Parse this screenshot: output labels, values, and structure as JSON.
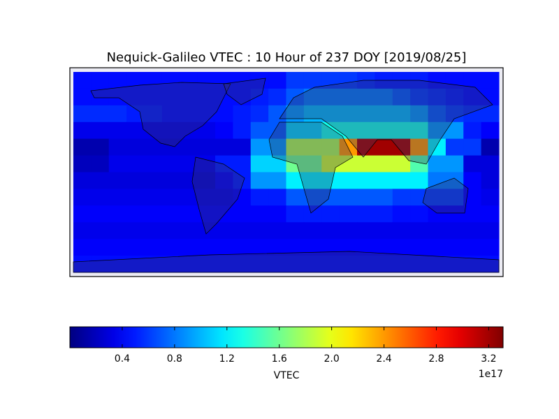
{
  "chart_data": {
    "type": "heatmap",
    "title": "Nequick-Galileo VTEC : 10 Hour of 237 DOY [2019/08/25]",
    "colormap": "jet",
    "z": [
      [
        0.45,
        0.45,
        0.45,
        0.45,
        0.45,
        0.45,
        0.45,
        0.45,
        0.45,
        0.45,
        0.45,
        0.45,
        0.6,
        0.6,
        0.6,
        0.6,
        0.55,
        0.5,
        0.5,
        0.5,
        0.45,
        0.45,
        0.45,
        0.45
      ],
      [
        0.45,
        0.45,
        0.45,
        0.45,
        0.45,
        0.45,
        0.45,
        0.45,
        0.45,
        0.45,
        0.5,
        0.55,
        0.7,
        0.8,
        0.8,
        0.8,
        0.8,
        0.8,
        0.7,
        0.6,
        0.55,
        0.5,
        0.45,
        0.45
      ],
      [
        0.55,
        0.55,
        0.55,
        0.5,
        0.5,
        0.45,
        0.45,
        0.45,
        0.45,
        0.5,
        0.55,
        0.7,
        0.9,
        1.0,
        1.0,
        1.0,
        1.0,
        1.0,
        1.0,
        0.9,
        0.7,
        0.6,
        0.55,
        0.55
      ],
      [
        0.35,
        0.35,
        0.35,
        0.35,
        0.35,
        0.35,
        0.35,
        0.35,
        0.4,
        0.5,
        0.7,
        0.7,
        1.1,
        1.1,
        1.3,
        1.3,
        1.3,
        1.3,
        1.3,
        1.3,
        0.9,
        0.9,
        0.5,
        0.4
      ],
      [
        0.15,
        0.15,
        0.3,
        0.3,
        0.3,
        0.3,
        0.3,
        0.3,
        0.3,
        0.3,
        0.9,
        0.9,
        1.8,
        1.8,
        1.8,
        2.4,
        3.2,
        3.2,
        3.2,
        2.4,
        1.2,
        0.6,
        0.6,
        0.15
      ],
      [
        0.2,
        0.2,
        0.35,
        0.35,
        0.35,
        0.35,
        0.35,
        0.35,
        0.5,
        0.5,
        1.1,
        1.1,
        1.6,
        1.6,
        1.9,
        1.9,
        1.9,
        1.9,
        1.9,
        1.5,
        0.9,
        0.9,
        0.3,
        0.3
      ],
      [
        0.3,
        0.3,
        0.3,
        0.3,
        0.3,
        0.3,
        0.3,
        0.3,
        0.4,
        0.5,
        0.9,
        0.9,
        1.2,
        1.2,
        1.2,
        1.2,
        1.2,
        1.2,
        1.2,
        1.2,
        0.8,
        0.8,
        0.4,
        0.3
      ],
      [
        0.35,
        0.35,
        0.35,
        0.35,
        0.35,
        0.35,
        0.35,
        0.35,
        0.35,
        0.4,
        0.5,
        0.5,
        0.7,
        0.7,
        0.7,
        0.7,
        0.7,
        0.7,
        0.6,
        0.6,
        0.6,
        0.6,
        0.4,
        0.35
      ],
      [
        0.4,
        0.4,
        0.4,
        0.4,
        0.4,
        0.4,
        0.4,
        0.4,
        0.4,
        0.4,
        0.4,
        0.4,
        0.5,
        0.5,
        0.5,
        0.5,
        0.5,
        0.5,
        0.45,
        0.45,
        0.4,
        0.4,
        0.4,
        0.4
      ],
      [
        0.35,
        0.35,
        0.35,
        0.35,
        0.35,
        0.35,
        0.35,
        0.35,
        0.35,
        0.35,
        0.35,
        0.35,
        0.35,
        0.35,
        0.35,
        0.35,
        0.35,
        0.35,
        0.35,
        0.35,
        0.35,
        0.35,
        0.35,
        0.35
      ],
      [
        0.4,
        0.4,
        0.4,
        0.4,
        0.4,
        0.4,
        0.4,
        0.4,
        0.4,
        0.4,
        0.4,
        0.4,
        0.4,
        0.4,
        0.4,
        0.4,
        0.4,
        0.4,
        0.4,
        0.4,
        0.4,
        0.4,
        0.4,
        0.4
      ],
      [
        0.45,
        0.45,
        0.45,
        0.45,
        0.45,
        0.45,
        0.45,
        0.45,
        0.45,
        0.45,
        0.45,
        0.45,
        0.45,
        0.45,
        0.45,
        0.45,
        0.45,
        0.45,
        0.45,
        0.45,
        0.45,
        0.45,
        0.45,
        0.45
      ]
    ],
    "clim": [
      0,
      3.31
    ],
    "cticks": [
      0.4,
      0.8,
      1.2,
      1.6,
      {
        "value": 2.0,
        "label": "2.0"
      },
      2.4,
      2.8,
      3.2
    ],
    "colorbar_label": "VTEC",
    "colorbar_offset": "1e17"
  }
}
